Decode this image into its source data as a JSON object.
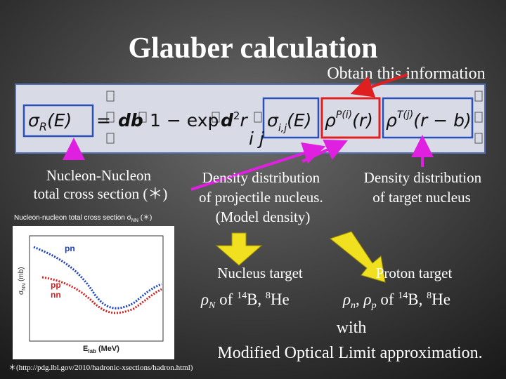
{
  "title": "Glauber calculation",
  "callout": "Obtain this information",
  "formula": {
    "sigma_r": [
      "σ",
      "R",
      "(E)"
    ],
    "equals": "=",
    "db": "db",
    "one_minus_exp": "1 − exp",
    "d2r": [
      "d",
      "2",
      "r"
    ],
    "sigma_ij": [
      "σ",
      "i,j",
      "(E)"
    ],
    "rho_p": [
      "ρ",
      "P(i)",
      "(r)"
    ],
    "rho_t": [
      "ρ",
      "T(j)",
      "(r − b)"
    ],
    "sum_index": "i j"
  },
  "labels": {
    "nn": [
      "Nucleon-Nucleon",
      "total cross section (＊)"
    ],
    "projectile": [
      "Density distribution",
      "of projectile nucleus.",
      "(Model density)"
    ],
    "target": [
      "Density distribution",
      "of target nucleus"
    ]
  },
  "inset": {
    "caption": [
      "Nucleon-nucleon total cross section σ",
      "NN",
      " (＊)"
    ],
    "y_label": [
      "σ",
      "NN",
      " (mb)"
    ],
    "x_label": [
      "E",
      "lab",
      " (MeV)"
    ],
    "series": [
      "pn",
      "pp",
      "nn"
    ]
  },
  "targets": {
    "nucleus": {
      "title": "Nucleus target",
      "rho": [
        "ρ",
        "N",
        " of ",
        "14",
        "B, ",
        "8",
        "He"
      ]
    },
    "proton": {
      "title": "Proton target",
      "rho": [
        "ρ",
        "n",
        ", ",
        "ρ",
        "p",
        " of ",
        "14",
        "B, ",
        "8",
        "He"
      ]
    }
  },
  "method": [
    "with",
    "Modified Optical Limit approximation."
  ],
  "footnote": "＊(http://pdg.lbl.gov/2010/hadronic-xsections/hadron.html)"
}
